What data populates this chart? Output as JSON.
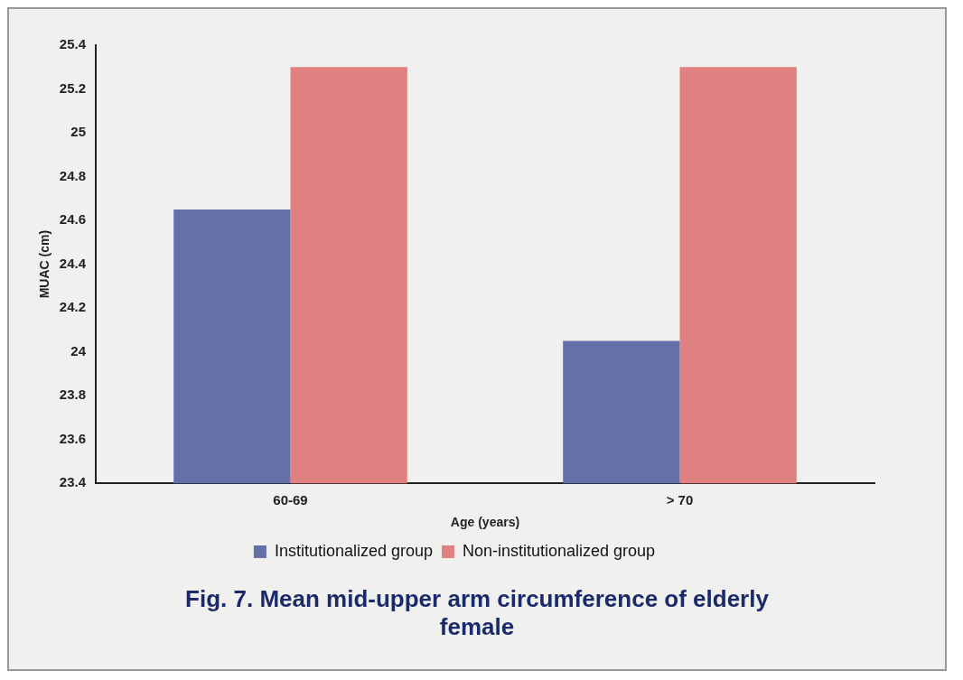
{
  "chart_data": {
    "type": "bar",
    "title": "Fig. 7. Mean mid-upper arm circumference of elderly female",
    "xlabel": "Age (years)",
    "ylabel": "MUAC (cm)",
    "categories": [
      "60-69",
      "> 70"
    ],
    "series": [
      {
        "name": "Institutionalized group",
        "color": "#6670a8",
        "values": [
          24.65,
          24.05
        ]
      },
      {
        "name": "Non-institutionalized group",
        "color": "#e08080",
        "values": [
          25.3,
          25.3
        ]
      }
    ],
    "ylim": [
      23.4,
      25.4
    ],
    "yticks": [
      23.4,
      23.6,
      23.8,
      24,
      24.2,
      24.4,
      24.6,
      24.8,
      25,
      25.2,
      25.4
    ],
    "grid": false,
    "legend": "bottom"
  }
}
